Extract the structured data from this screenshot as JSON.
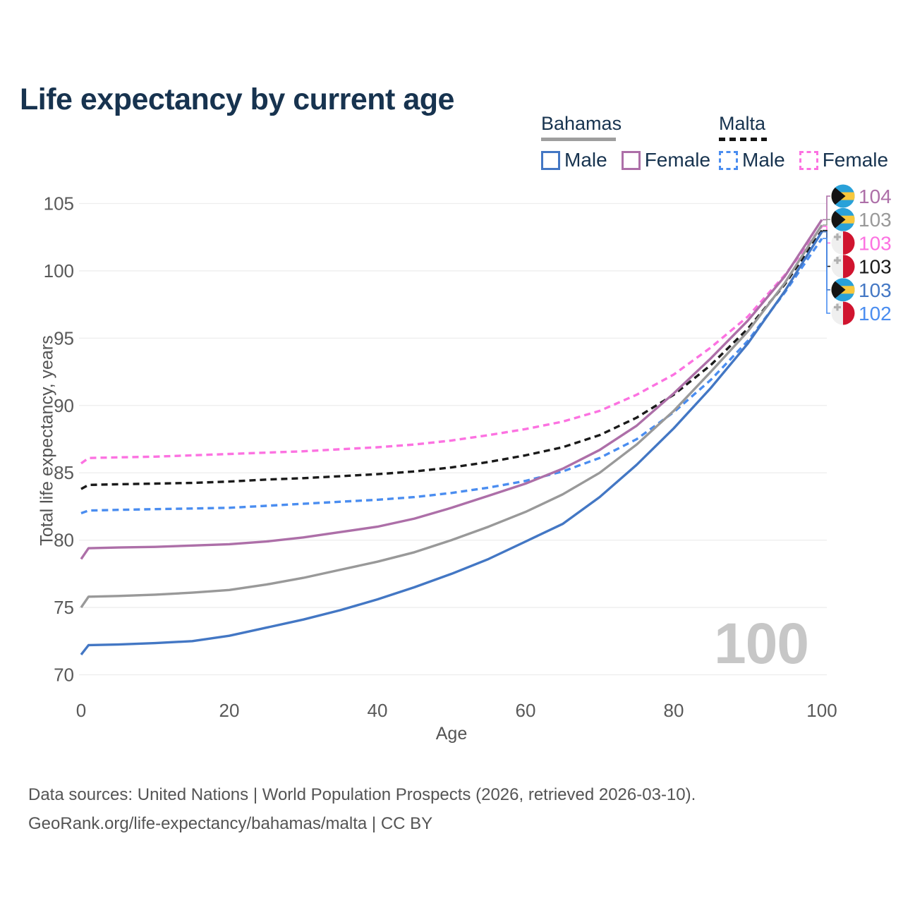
{
  "title": "Life expectancy by current age",
  "colors": {
    "title_text": "#17334f",
    "axis_text": "#595959",
    "muted_text": "#545454",
    "grid": "#ededed",
    "watermark": "#c7c7c7"
  },
  "legend": {
    "groups": [
      {
        "country": "Bahamas",
        "line_style": "solid",
        "line_color": "#9e9e9e",
        "items": [
          {
            "label": "Male",
            "color": "#4377c4"
          },
          {
            "label": "Female",
            "color": "#ad6fa8"
          }
        ]
      },
      {
        "country": "Malta",
        "line_style": "dashed",
        "line_color": "#141414",
        "items": [
          {
            "label": "Male",
            "color": "#4a8df0"
          },
          {
            "label": "Female",
            "color": "#fc72e1"
          }
        ]
      }
    ]
  },
  "hover_age_display": "100",
  "footer": {
    "line1": "Data sources: United Nations | World Population Prospects (2026, retrieved 2026-03-10).",
    "line2": "GeoRank.org/life-expectancy/bahamas/malta | CC BY"
  },
  "chart_data": {
    "type": "line",
    "title": "Life expectancy by current age",
    "xlabel": "Age",
    "ylabel": "Total life expectancy, years",
    "xlim": [
      0,
      100
    ],
    "ylim": [
      68.5,
      106
    ],
    "x_ticks": [
      0,
      20,
      40,
      60,
      80,
      100
    ],
    "y_ticks": [
      70,
      75,
      80,
      85,
      90,
      95,
      100,
      105
    ],
    "grid": "horizontal",
    "legend_position": "top-right",
    "x": [
      0,
      1,
      5,
      10,
      15,
      20,
      25,
      30,
      35,
      40,
      45,
      50,
      55,
      60,
      65,
      70,
      75,
      80,
      85,
      90,
      95,
      100
    ],
    "series": [
      {
        "id": "malta-female",
        "name": "Malta Female",
        "country": "Malta",
        "sex": "Female",
        "color": "#fc72e1",
        "dash": true,
        "values": [
          85.7,
          86.1,
          86.15,
          86.2,
          86.3,
          86.4,
          86.5,
          86.6,
          86.75,
          86.9,
          87.1,
          87.4,
          87.8,
          88.25,
          88.8,
          89.6,
          90.8,
          92.3,
          94.3,
          96.6,
          99.7,
          103.3
        ]
      },
      {
        "id": "malta-both",
        "name": "Malta Both sexes",
        "country": "Malta",
        "sex": "Both",
        "color": "#1a1a1a",
        "dash": true,
        "values": [
          83.8,
          84.1,
          84.15,
          84.2,
          84.25,
          84.35,
          84.5,
          84.6,
          84.75,
          84.9,
          85.1,
          85.4,
          85.8,
          86.3,
          86.9,
          87.8,
          89.1,
          90.8,
          93.0,
          95.7,
          99.0,
          103.0
        ]
      },
      {
        "id": "malta-male",
        "name": "Malta Male",
        "country": "Malta",
        "sex": "Male",
        "color": "#4a8df0",
        "dash": true,
        "values": [
          82.0,
          82.2,
          82.25,
          82.3,
          82.35,
          82.4,
          82.55,
          82.7,
          82.85,
          83.0,
          83.2,
          83.5,
          83.9,
          84.4,
          85.1,
          86.1,
          87.5,
          89.5,
          91.9,
          94.8,
          98.4,
          102.4
        ]
      },
      {
        "id": "bahamas-both",
        "name": "Bahamas Both sexes",
        "country": "Bahamas",
        "sex": "Both",
        "color": "#999999",
        "dash": false,
        "values": [
          75.0,
          75.8,
          75.85,
          75.95,
          76.1,
          76.3,
          76.7,
          77.2,
          77.8,
          78.4,
          79.1,
          80.0,
          81.0,
          82.1,
          83.4,
          85.0,
          87.1,
          89.6,
          92.5,
          95.5,
          99.1,
          103.4
        ]
      },
      {
        "id": "bahamas-female",
        "name": "Bahamas Female",
        "country": "Bahamas",
        "sex": "Female",
        "color": "#ad6fa8",
        "dash": false,
        "values": [
          78.6,
          79.4,
          79.45,
          79.5,
          79.6,
          79.7,
          79.9,
          80.2,
          80.6,
          81.0,
          81.6,
          82.4,
          83.3,
          84.2,
          85.3,
          86.7,
          88.5,
          90.9,
          93.5,
          96.3,
          99.6,
          103.8
        ]
      },
      {
        "id": "bahamas-male",
        "name": "Bahamas Male",
        "country": "Bahamas",
        "sex": "Male",
        "color": "#4377c4",
        "dash": false,
        "values": [
          71.5,
          72.2,
          72.25,
          72.35,
          72.5,
          72.9,
          73.5,
          74.1,
          74.8,
          75.6,
          76.5,
          77.5,
          78.6,
          79.9,
          81.2,
          83.2,
          85.6,
          88.3,
          91.3,
          94.6,
          98.5,
          102.9
        ]
      }
    ],
    "end_labels": [
      {
        "series": "bahamas-female",
        "label": "104",
        "flag": "bahamas",
        "color": "#ad6fa8"
      },
      {
        "series": "bahamas-both",
        "label": "103",
        "flag": "bahamas",
        "color": "#999999"
      },
      {
        "series": "malta-female",
        "label": "103",
        "flag": "malta",
        "color": "#fc72e1"
      },
      {
        "series": "malta-both",
        "label": "103",
        "flag": "malta",
        "color": "#1a1a1a"
      },
      {
        "series": "bahamas-male",
        "label": "103",
        "flag": "bahamas",
        "color": "#4377c4"
      },
      {
        "series": "malta-male",
        "label": "102",
        "flag": "malta",
        "color": "#4a8df0"
      }
    ],
    "flag_colors": {
      "bahamas": {
        "aqua": "#29a1d9",
        "gold": "#f8c83c",
        "black": "#141414"
      },
      "malta": {
        "white": "#efefef",
        "red": "#d0142f",
        "cross": "#b0b0b0"
      }
    }
  }
}
